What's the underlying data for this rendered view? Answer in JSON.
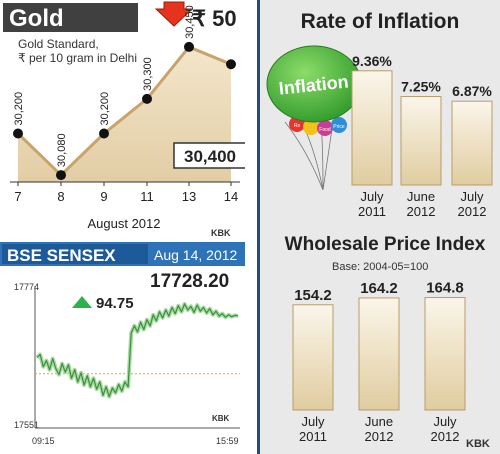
{
  "colors": {
    "gold_area": "#e9d9b8",
    "gold_line": "#c9a46a",
    "header_dark": "#4a4a4a",
    "sensex_blue": "#2e73b8",
    "bar_fill_light": "#f7f0e0",
    "bar_fill_dark": "#e2cfa7",
    "bar_stroke": "#b79d6a",
    "up_green": "#2bb24c",
    "sensex_line": "#3fae49",
    "right_bg": "#e9e9e9",
    "divider": "#1f4f7a",
    "down_arrow": "#e6331d"
  },
  "gold": {
    "title": "Gold",
    "change": "₹ 50",
    "subtitle_line1": "Gold Standard,",
    "subtitle_line2": "₹ per 10 gram in Delhi",
    "xlabel": "August 2012",
    "latest": "30,400",
    "credit": "KBK"
  },
  "sensex": {
    "title": "BSE SENSEX",
    "date": "Aug 14, 2012",
    "close": "17728.20",
    "change": "94.75",
    "y_high": "17774",
    "y_low": "17551",
    "time_start": "09:15",
    "time_end": "15:59",
    "credit": "KBK"
  },
  "inflation": {
    "title": "Rate of Inflation",
    "balloon_text": "Inflation",
    "balloon_small": [
      "Rs",
      "Food",
      "Price"
    ]
  },
  "wpi": {
    "title": "Wholesale Price Index",
    "base": "Base: 2004-05=100",
    "credit": "KBK"
  },
  "chart_data": [
    {
      "type": "line",
      "title": "Gold",
      "subtitle": "Gold Standard, ₹ per 10 gram in Delhi",
      "xlabel": "August 2012",
      "categories": [
        "7",
        "8",
        "9",
        "11",
        "13",
        "14"
      ],
      "values": [
        30200,
        30080,
        30200,
        30300,
        30450,
        30400
      ],
      "labels": [
        "30,200",
        "30,080",
        "30,200",
        "30,300",
        "30,450",
        "30,400"
      ],
      "ylim": [
        30060,
        30470
      ]
    },
    {
      "type": "line",
      "title": "BSE SENSEX",
      "subtitle": "Aug 14, 2012",
      "x_start": "09:15",
      "x_end": "15:59",
      "ylim": [
        17551,
        17774
      ],
      "reference_level": 17633.45,
      "values": [
        17660,
        17665,
        17645,
        17655,
        17640,
        17658,
        17642,
        17632,
        17650,
        17636,
        17648,
        17626,
        17640,
        17620,
        17635,
        17615,
        17630,
        17612,
        17626,
        17608,
        17620,
        17598,
        17612,
        17596,
        17610,
        17602,
        17616,
        17605,
        17620,
        17612,
        17700,
        17712,
        17702,
        17718,
        17706,
        17722,
        17712,
        17730,
        17720,
        17735,
        17725,
        17738,
        17728,
        17742,
        17732,
        17745,
        17735,
        17748,
        17738,
        17744,
        17734,
        17746,
        17736,
        17742,
        17733,
        17740,
        17730,
        17736,
        17728,
        17732,
        17726,
        17730,
        17727,
        17729,
        17728.2
      ]
    },
    {
      "type": "bar",
      "title": "Rate of Inflation",
      "categories": [
        "July\n2011",
        "June\n2012",
        "July\n2012"
      ],
      "values": [
        9.36,
        7.25,
        6.87
      ],
      "labels": [
        "9.36%",
        "7.25%",
        "6.87%"
      ],
      "ylim": [
        0,
        10
      ]
    },
    {
      "type": "bar",
      "title": "Wholesale Price Index",
      "subtitle": "Base: 2004-05=100",
      "categories": [
        "July\n2011",
        "June\n2012",
        "July\n2012"
      ],
      "values": [
        154.2,
        164.2,
        164.8
      ],
      "labels": [
        "154.2",
        "164.2",
        "164.8"
      ],
      "ylim": [
        0,
        170
      ]
    }
  ]
}
